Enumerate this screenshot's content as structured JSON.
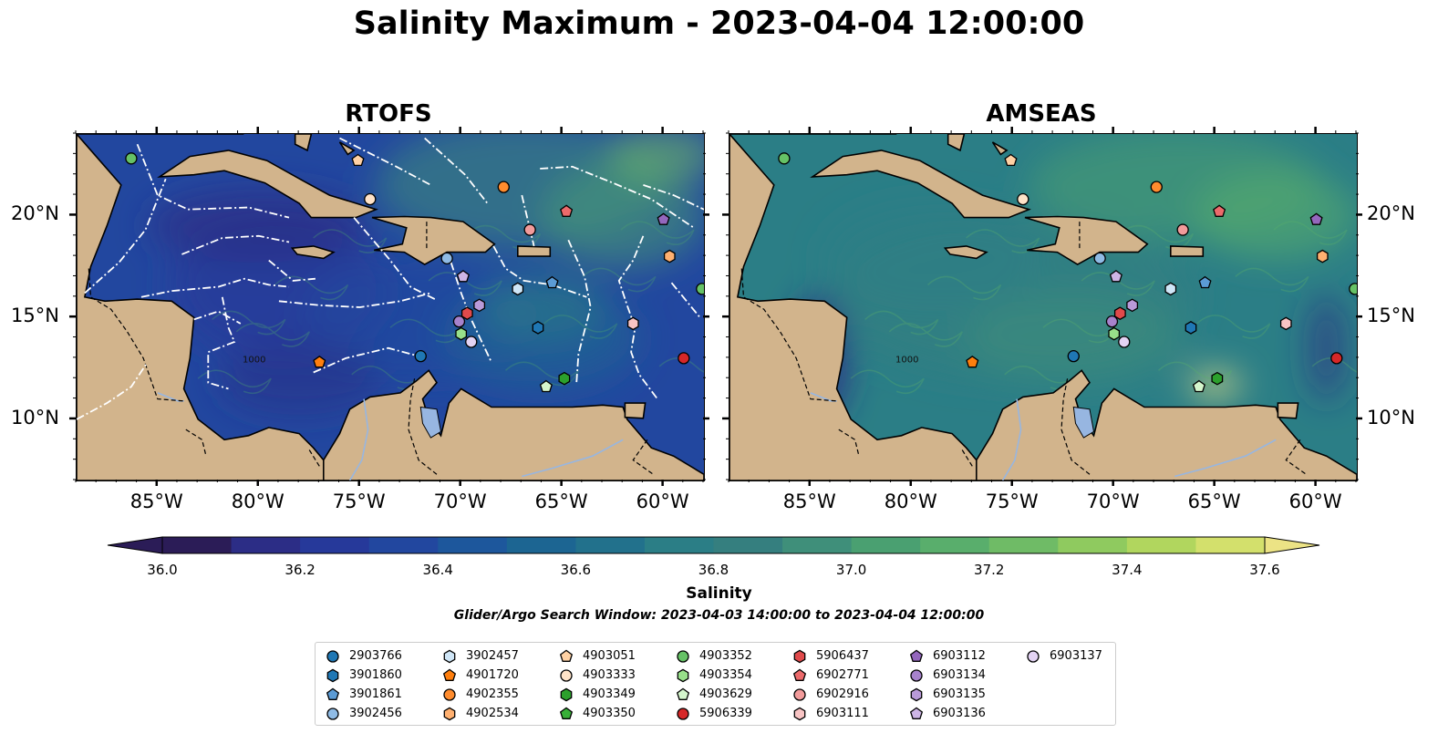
{
  "title": "Salinity Maximum - 2023-04-04 12:00:00",
  "panels": [
    {
      "title": "RTOFS",
      "has_boundaries": true
    },
    {
      "title": "AMSEAS",
      "has_boundaries": false
    }
  ],
  "map": {
    "lon_range": [
      -89,
      -58
    ],
    "lat_range": [
      7,
      24
    ],
    "lat_ticks": [
      {
        "value": 20,
        "label": "20°N"
      },
      {
        "value": 15,
        "label": "15°N"
      },
      {
        "value": 10,
        "label": "10°N"
      }
    ],
    "lon_ticks": [
      {
        "value": -85,
        "label": "85°W"
      },
      {
        "value": -80,
        "label": "80°W"
      },
      {
        "value": -75,
        "label": "75°W"
      },
      {
        "value": -70,
        "label": "70°W"
      },
      {
        "value": -65,
        "label": "65°W"
      },
      {
        "value": -60,
        "label": "60°W"
      }
    ],
    "contour_label": "1000",
    "land_color": "#d2b48c",
    "lake_color": "#97b6e1"
  },
  "colorbar": {
    "label": "Salinity",
    "min": 36.0,
    "max": 37.6,
    "ticks": [
      "36.0",
      "36.2",
      "36.4",
      "36.6",
      "36.8",
      "37.0",
      "37.2",
      "37.4",
      "37.6"
    ],
    "colors": [
      "#2b1c57",
      "#2c2d86",
      "#26399a",
      "#22479f",
      "#1d579c",
      "#1c6592",
      "#22718c",
      "#2b7e86",
      "#357f7f",
      "#3f8f7a",
      "#4aa071",
      "#59ae6c",
      "#6fbb66",
      "#8fca5f",
      "#b1d65e",
      "#d3e06c",
      "#ece385"
    ]
  },
  "search_window": "Glider/Argo Search Window: 2023-04-03 14:00:00 to 2023-04-04 12:00:00",
  "legend": [
    {
      "id": "2903766",
      "shape": "circle",
      "color": "#1f77b4"
    },
    {
      "id": "3901860",
      "shape": "hexagon",
      "color": "#1f77b4"
    },
    {
      "id": "3901861",
      "shape": "pentagon",
      "color": "#5b9bd5"
    },
    {
      "id": "3902456",
      "shape": "circle",
      "color": "#8fbbe5"
    },
    {
      "id": "3902457",
      "shape": "hexagon",
      "color": "#cfe6f7"
    },
    {
      "id": "4901720",
      "shape": "pentagon",
      "color": "#ff7f0e"
    },
    {
      "id": "4902355",
      "shape": "circle",
      "color": "#ff8c2e"
    },
    {
      "id": "4902534",
      "shape": "hexagon",
      "color": "#ffb070"
    },
    {
      "id": "4903051",
      "shape": "pentagon",
      "color": "#ffd1a4"
    },
    {
      "id": "4903333",
      "shape": "circle",
      "color": "#ffe3c8"
    },
    {
      "id": "4903349",
      "shape": "hexagon",
      "color": "#2ca02c"
    },
    {
      "id": "4903350",
      "shape": "pentagon",
      "color": "#38b038"
    },
    {
      "id": "4903352",
      "shape": "circle",
      "color": "#66c266"
    },
    {
      "id": "4903354",
      "shape": "hexagon",
      "color": "#98df8a"
    },
    {
      "id": "4903629",
      "shape": "pentagon",
      "color": "#d4f5cc"
    },
    {
      "id": "5906339",
      "shape": "circle",
      "color": "#d62728"
    },
    {
      "id": "5906437",
      "shape": "hexagon",
      "color": "#e04a4b"
    },
    {
      "id": "6902771",
      "shape": "pentagon",
      "color": "#ec6a6b"
    },
    {
      "id": "6902916",
      "shape": "circle",
      "color": "#f29b9b"
    },
    {
      "id": "6903111",
      "shape": "hexagon",
      "color": "#f8c4c4"
    },
    {
      "id": "6903112",
      "shape": "pentagon",
      "color": "#9467bd"
    },
    {
      "id": "6903134",
      "shape": "circle",
      "color": "#a782cc"
    },
    {
      "id": "6903135",
      "shape": "hexagon",
      "color": "#b99ad9"
    },
    {
      "id": "6903136",
      "shape": "pentagon",
      "color": "#cdb5e6"
    },
    {
      "id": "6903137",
      "shape": "circle",
      "color": "#e3d3f3"
    }
  ],
  "observations": [
    {
      "id": "4903352",
      "lon": -86.3,
      "lat": 22.8
    },
    {
      "id": "4903051",
      "lon": -75.1,
      "lat": 22.7
    },
    {
      "id": "4903333",
      "lon": -74.5,
      "lat": 20.8
    },
    {
      "id": "4902355",
      "lon": -67.9,
      "lat": 21.4
    },
    {
      "id": "6902771",
      "lon": -64.8,
      "lat": 20.2
    },
    {
      "id": "6903112",
      "lon": -60.0,
      "lat": 19.8
    },
    {
      "id": "6902916",
      "lon": -66.6,
      "lat": 19.3
    },
    {
      "id": "4902534",
      "lon": -59.7,
      "lat": 18.0
    },
    {
      "id": "3902456",
      "lon": -70.7,
      "lat": 17.9
    },
    {
      "id": "6903136",
      "lon": -69.9,
      "lat": 17.0
    },
    {
      "id": "3901861",
      "lon": -65.5,
      "lat": 16.7
    },
    {
      "id": "3902457",
      "lon": -67.2,
      "lat": 16.4
    },
    {
      "id": "4903352",
      "lon": -58.1,
      "lat": 16.4
    },
    {
      "id": "6903135",
      "lon": -69.1,
      "lat": 15.6
    },
    {
      "id": "5906437",
      "lon": -69.7,
      "lat": 15.2
    },
    {
      "id": "6903134",
      "lon": -70.1,
      "lat": 14.8
    },
    {
      "id": "6903111",
      "lon": -61.5,
      "lat": 14.7
    },
    {
      "id": "3901860",
      "lon": -66.2,
      "lat": 14.5
    },
    {
      "id": "4903354",
      "lon": -70.0,
      "lat": 14.2
    },
    {
      "id": "6903137",
      "lon": -69.5,
      "lat": 13.8
    },
    {
      "id": "2903766",
      "lon": -72.0,
      "lat": 13.1
    },
    {
      "id": "5906339",
      "lon": -59.0,
      "lat": 13.0
    },
    {
      "id": "4901720",
      "lon": -77.0,
      "lat": 12.8
    },
    {
      "id": "4903349",
      "lon": -64.9,
      "lat": 12.0
    },
    {
      "id": "4903629",
      "lon": -65.8,
      "lat": 11.6
    }
  ]
}
